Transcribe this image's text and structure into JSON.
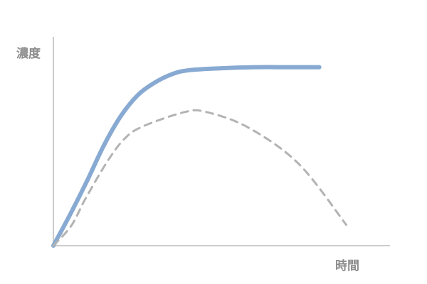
{
  "chart_data": {
    "type": "line",
    "ylabel": "濃度",
    "xlabel": "時間",
    "xlim": [
      0,
      100
    ],
    "ylim": [
      0,
      100
    ],
    "series": [
      {
        "color": "#88aad2",
        "style": "solid",
        "x": [
          0,
          5,
          10,
          15,
          20,
          25,
          30,
          35,
          40,
          50,
          60,
          70,
          79
        ],
        "values": [
          0,
          15,
          31,
          48,
          62,
          72,
          78,
          82,
          84,
          85,
          85.5,
          85.5,
          85.5
        ]
      },
      {
        "color": "#b3b3b3",
        "style": "dashed",
        "x": [
          0,
          5.3,
          9.5,
          15.9,
          21,
          26.4,
          39,
          45.5,
          58,
          73,
          87
        ],
        "values": [
          0,
          9.5,
          22.4,
          40,
          51,
          57,
          64,
          64,
          56.5,
          39,
          10
        ]
      }
    ]
  }
}
